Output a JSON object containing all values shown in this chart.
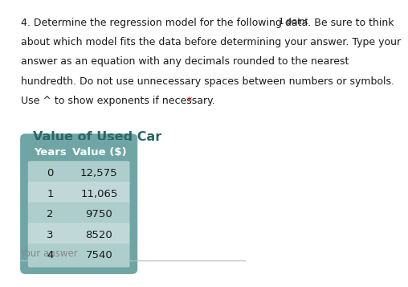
{
  "question_text_lines": [
    "4. Determine the regression model for the following data. Be sure to think",
    "about which model fits the data before determining your answer. Type your",
    "answer as an equation with any decimals rounded to the nearest",
    "hundredth. Do not use unnecessary spaces between numbers or symbols.",
    "Use ^ to show exponents if necessary. *"
  ],
  "point_label": "1 point",
  "table_title": "Value of Used Car",
  "col_headers": [
    "Years",
    "Value ($)"
  ],
  "rows": [
    [
      "0",
      "12,575"
    ],
    [
      "1",
      "11,065"
    ],
    [
      "2",
      "9750"
    ],
    [
      "3",
      "8520"
    ],
    [
      "4",
      "7540"
    ]
  ],
  "your_answer_label": "Your answer",
  "header_bg_color": "#6fa5a5",
  "row_bg_color_even": "#aecece",
  "row_bg_color_odd": "#c0d8d8",
  "table_outer_bg": "#6fa5a5",
  "bg_color": "#ffffff",
  "text_color": "#1a1a1a",
  "header_text_color": "#ffffff",
  "asterisk_color": "#cc0000",
  "question_fontsize": 9.0,
  "point_fontsize": 7.5,
  "table_title_fontsize": 11.5,
  "table_fontsize": 9.5,
  "your_answer_fontsize": 8.5
}
